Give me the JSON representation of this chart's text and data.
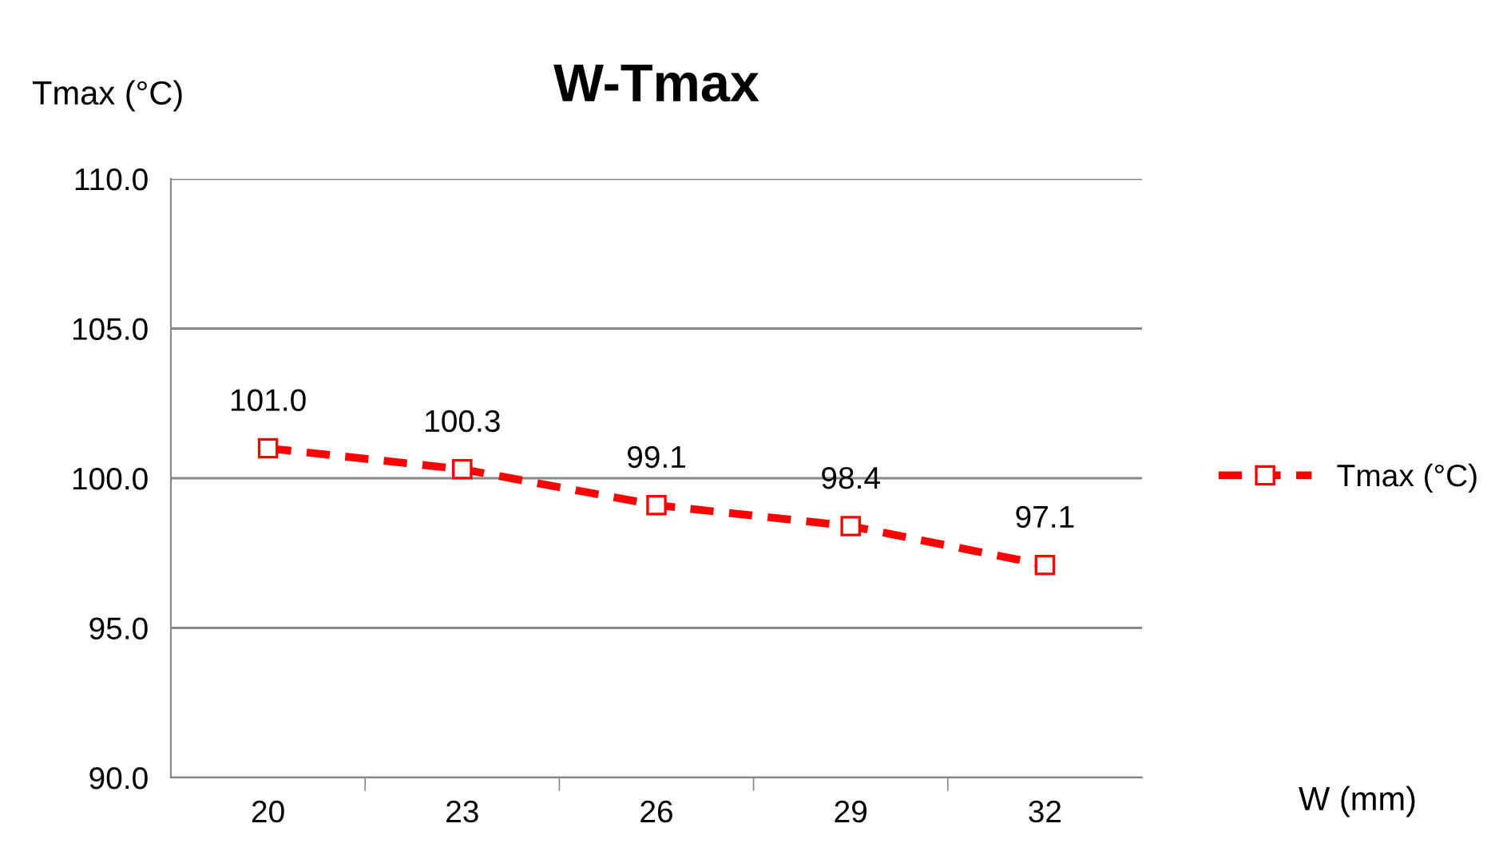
{
  "chart_data": {
    "type": "line",
    "title": "W-Tmax",
    "xlabel": "W (mm)",
    "ylabel": "Tmax (°C)",
    "categories": [
      "20",
      "23",
      "26",
      "29",
      "32"
    ],
    "series": [
      {
        "name": "Tmax (°C)",
        "color": "#ff0000",
        "values": [
          101.0,
          100.3,
          99.1,
          98.4,
          97.1
        ],
        "value_labels": [
          "101.0",
          "100.3",
          "99.1",
          "98.4",
          "97.1"
        ]
      }
    ],
    "ylim": [
      90,
      110
    ],
    "yticks": [
      {
        "value": 90,
        "label": "90.0"
      },
      {
        "value": 95,
        "label": "95.0"
      },
      {
        "value": 100,
        "label": "100.0"
      },
      {
        "value": 105,
        "label": "105.0"
      },
      {
        "value": 110,
        "label": "110.0"
      }
    ],
    "grid": "y",
    "legend": "right",
    "marker": "square",
    "line_style": "dashed"
  }
}
